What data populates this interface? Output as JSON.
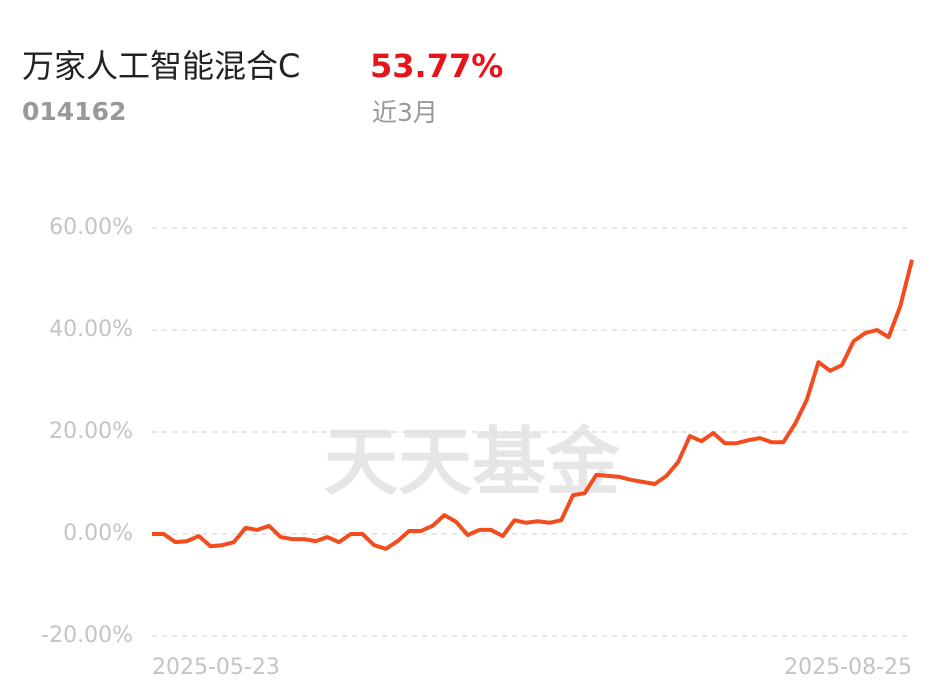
{
  "chart_data": {
    "type": "line",
    "title": "万家人工智能混合C",
    "return_label": "53.77%",
    "fund_code": "014162",
    "period": "近3月",
    "watermark": "天天基金",
    "categories": [
      "2025-05-23",
      null,
      null,
      null,
      null,
      null,
      null,
      null,
      null,
      null,
      null,
      null,
      null,
      null,
      null,
      null,
      null,
      null,
      null,
      null,
      null,
      null,
      null,
      null,
      null,
      null,
      null,
      null,
      null,
      null,
      null,
      null,
      null,
      null,
      null,
      null,
      null,
      null,
      null,
      null,
      null,
      null,
      null,
      null,
      null,
      null,
      null,
      null,
      null,
      null,
      null,
      null,
      null,
      null,
      null,
      null,
      null,
      null,
      null,
      null,
      null,
      null,
      null,
      null,
      null,
      "2025-08-25"
    ],
    "series": [
      {
        "color": "#f24c1f",
        "values": [
          0,
          0,
          -1.6,
          -1.4,
          -0.4,
          -2.4,
          -2.2,
          -1.6,
          1.2,
          0.8,
          1.6,
          -0.6,
          -1.0,
          -1.0,
          -1.4,
          -0.6,
          -1.6,
          0,
          0,
          -2.2,
          -2.9,
          -1.4,
          0.6,
          0.6,
          1.6,
          3.7,
          2.4,
          -0.2,
          0.8,
          0.8,
          -0.4,
          2.7,
          2.2,
          2.5,
          2.2,
          2.7,
          7.6,
          8.0,
          11.6,
          11.4,
          11.2,
          10.6,
          10.2,
          9.8,
          11.4,
          14.1,
          19.2,
          18.2,
          19.8,
          17.8,
          17.8,
          18.4,
          18.8,
          18.0,
          18.0,
          21.6,
          26.3,
          33.7,
          32.0,
          33.1,
          37.8,
          39.4,
          40.0,
          38.6,
          44.7,
          53.77
        ]
      }
    ],
    "ylim": [
      -20,
      60
    ],
    "yticks": [
      {
        "value": -20,
        "label": "-20.00%"
      },
      {
        "value": 0,
        "label": "0.00%"
      },
      {
        "value": 20,
        "label": "20.00%"
      },
      {
        "value": 40,
        "label": "40.00%"
      },
      {
        "value": 60,
        "label": "60.00%"
      }
    ],
    "grid": true
  }
}
